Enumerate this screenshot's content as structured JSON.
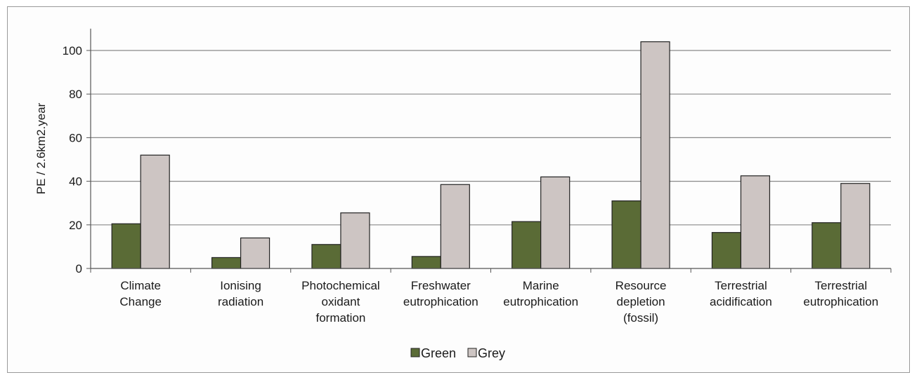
{
  "chart_data": {
    "type": "bar",
    "ylabel": "PE / 2.6km2.year",
    "ylim": [
      0,
      110
    ],
    "yticks": [
      0,
      20,
      40,
      60,
      80,
      100
    ],
    "grid": true,
    "legend_position": "bottom",
    "categories": [
      [
        "Climate",
        "Change"
      ],
      [
        "Ionising",
        "radiation"
      ],
      [
        "Photochemical",
        "oxidant",
        "formation"
      ],
      [
        "Freshwater",
        "eutrophication"
      ],
      [
        "Marine",
        "eutrophication"
      ],
      [
        "Resource",
        "depletion",
        "(fossil)"
      ],
      [
        "Terrestrial",
        "acidification"
      ],
      [
        "Terrestrial",
        "eutrophication"
      ]
    ],
    "series": [
      {
        "name": "Green",
        "color": "#5a6b36",
        "values": [
          20.5,
          5,
          11,
          5.5,
          21.5,
          31,
          16.5,
          21
        ]
      },
      {
        "name": "Grey",
        "color": "#cdc5c3",
        "values": [
          52,
          14,
          25.5,
          38.5,
          42,
          104,
          42.5,
          39
        ]
      }
    ]
  }
}
